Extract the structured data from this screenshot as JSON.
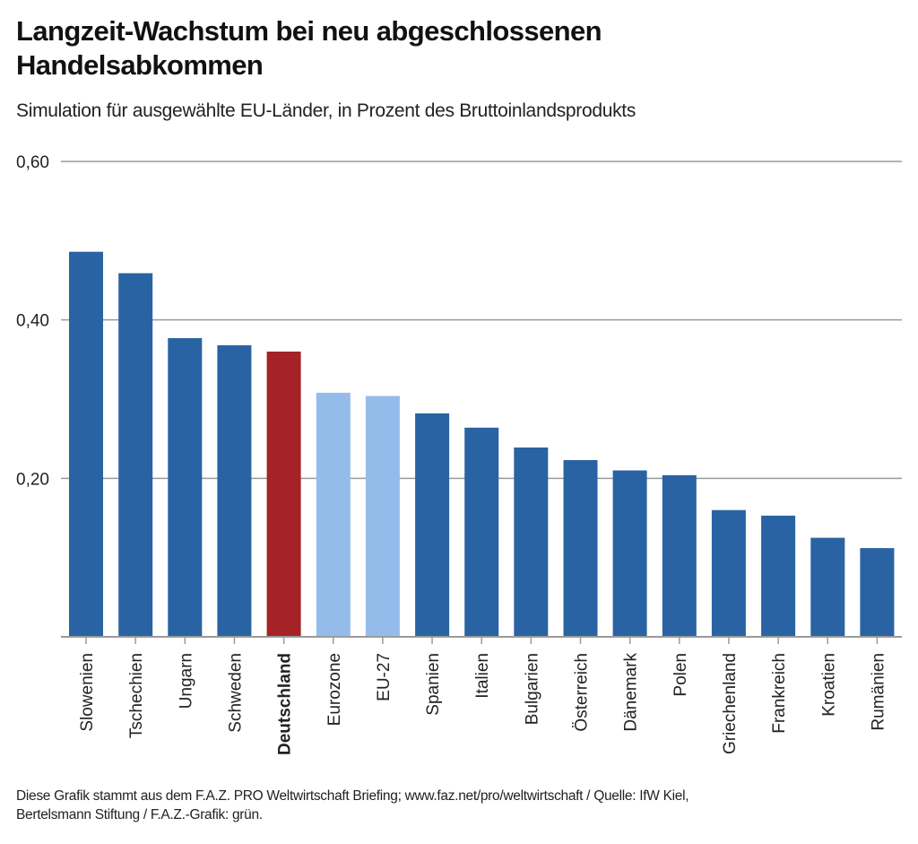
{
  "title_line1": "Langzeit-Wachstum bei neu abgeschlossenen",
  "title_line2": "Handelsabkommen",
  "subtitle": "Simulation für ausgewählte EU-Länder, in Prozent des Bruttoinlandsprodukts",
  "footer_line1": "Diese Grafik stammt aus dem F.A.Z. PRO Weltwirtschaft Briefing; www.faz.net/pro/weltwirtschaft / Quelle: IfW Kiel,",
  "footer_line2": "Bertelsmann Stiftung / F.A.Z.-Grafik: grün.",
  "colors": {
    "country": "#2963a3",
    "aggregate": "#94bceb",
    "highlight": "#a52226",
    "grid": "#9a9a9a"
  },
  "chart_data": {
    "type": "bar",
    "title": "Langzeit-Wachstum bei neu abgeschlossenen Handelsabkommen",
    "subtitle": "Simulation für ausgewählte EU-Länder, in Prozent des Bruttoinlandsprodukts",
    "xlabel": "",
    "ylabel": "",
    "ylim": [
      0,
      0.6
    ],
    "yticks": [
      0.2,
      0.4,
      0.6
    ],
    "ytick_labels": [
      "0,20",
      "0,40",
      "0,60"
    ],
    "grid": true,
    "categories": [
      "Slowenien",
      "Tschechien",
      "Ungarn",
      "Schweden",
      "Deutschland",
      "Eurozone",
      "EU-27",
      "Spanien",
      "Italien",
      "Bulgarien",
      "Österreich",
      "Dänemark",
      "Polen",
      "Griechenland",
      "Frankreich",
      "Kroatien",
      "Rumänien"
    ],
    "values": [
      0.486,
      0.459,
      0.377,
      0.368,
      0.36,
      0.308,
      0.304,
      0.282,
      0.264,
      0.239,
      0.223,
      0.21,
      0.204,
      0.16,
      0.153,
      0.125,
      0.112
    ],
    "bar_kind": [
      "country",
      "country",
      "country",
      "country",
      "highlight",
      "aggregate",
      "aggregate",
      "country",
      "country",
      "country",
      "country",
      "country",
      "country",
      "country",
      "country",
      "country",
      "country"
    ]
  }
}
